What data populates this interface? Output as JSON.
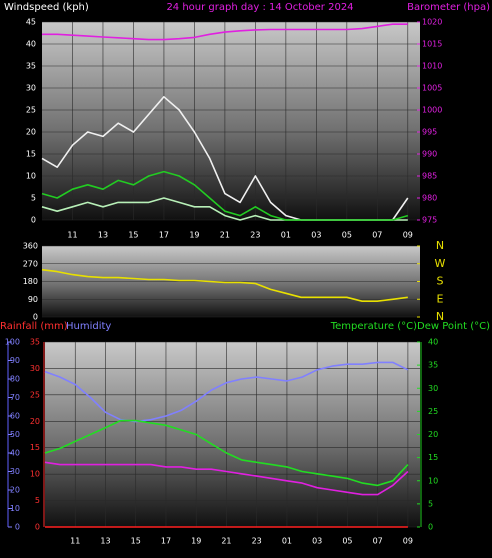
{
  "chart_data": [
    {
      "type": "line",
      "title": "24 hour graph day : 14 October 2024",
      "ylabel": "Windspeed (kph)",
      "y2label": "Barometer (hpa)",
      "x": [
        9,
        10,
        11,
        12,
        13,
        14,
        15,
        16,
        17,
        18,
        19,
        20,
        21,
        22,
        23,
        24,
        25,
        26,
        27,
        28,
        29,
        30,
        31,
        32,
        33
      ],
      "xlim": [
        9,
        33.8
      ],
      "xticks": [
        11,
        13,
        15,
        17,
        19,
        21,
        23,
        {
          "value": 25,
          "label": "01"
        },
        {
          "value": 27,
          "label": "03"
        },
        {
          "value": 29,
          "label": "05"
        },
        {
          "value": 31,
          "label": "07"
        },
        {
          "value": 33,
          "label": "09"
        }
      ],
      "ylim": [
        0,
        45
      ],
      "yticks": [
        0,
        5,
        10,
        15,
        20,
        25,
        30,
        35,
        40,
        45
      ],
      "y2lim": [
        975,
        1020
      ],
      "y2ticks": [
        975,
        980,
        985,
        990,
        995,
        1000,
        1005,
        1010,
        1015,
        1020
      ],
      "grid": true,
      "series": [
        {
          "color": "#f0f0f0",
          "values": [
            14,
            12,
            17,
            20,
            19,
            22,
            20,
            24,
            28,
            25,
            20,
            14,
            6,
            4,
            10,
            4,
            1,
            0,
            0,
            0,
            0,
            0,
            0,
            0,
            5
          ]
        },
        {
          "color": "#b8f0b8",
          "values": [
            3,
            2,
            3,
            4,
            3,
            4,
            4,
            4,
            5,
            4,
            3,
            3,
            1,
            0,
            1,
            0,
            0,
            0,
            0,
            0,
            0,
            0,
            0,
            0,
            0
          ]
        },
        {
          "color": "#22cc22",
          "values": [
            6,
            5,
            7,
            8,
            7,
            9,
            8,
            10,
            11,
            10,
            8,
            5,
            2,
            1,
            3,
            1,
            0,
            0,
            0,
            0,
            0,
            0,
            0,
            0,
            1
          ]
        },
        {
          "color": "#e020e0",
          "axis": "y2",
          "values": [
            1017.2,
            1017.2,
            1017,
            1016.8,
            1016.6,
            1016.4,
            1016.2,
            1016,
            1016,
            1016.2,
            1016.5,
            1017.2,
            1017.7,
            1018,
            1018.2,
            1018.3,
            1018.3,
            1018.3,
            1018.3,
            1018.3,
            1018.3,
            1018.5,
            1019,
            1019.5,
            1019.5
          ]
        }
      ]
    },
    {
      "type": "line",
      "x": [
        9,
        10,
        11,
        12,
        13,
        14,
        15,
        16,
        17,
        18,
        19,
        20,
        21,
        22,
        23,
        24,
        25,
        26,
        27,
        28,
        29,
        30,
        31,
        32,
        33
      ],
      "xlim": [
        9,
        33.8
      ],
      "ylim": [
        0,
        360
      ],
      "yticks": [
        0,
        90,
        180,
        270,
        360
      ],
      "y2lim": [
        0,
        360
      ],
      "y2ticks": [
        {
          "value": 360,
          "label": "N"
        },
        {
          "value": 270,
          "label": "W"
        },
        {
          "value": 180,
          "label": "S"
        },
        {
          "value": 90,
          "label": "E"
        },
        {
          "value": 0,
          "label": "N"
        }
      ],
      "grid": true,
      "series": [
        {
          "color": "#e8e000",
          "values": [
            240,
            230,
            215,
            205,
            200,
            200,
            195,
            190,
            190,
            185,
            185,
            180,
            175,
            175,
            170,
            140,
            120,
            100,
            100,
            100,
            100,
            80,
            80,
            90,
            100
          ]
        }
      ]
    },
    {
      "type": "line",
      "ylabel": "Rainfall (mm)",
      "y3label": "Humidity",
      "y2label": "Temperature (°C)Dew Point (°C)",
      "x": [
        9,
        10,
        11,
        12,
        13,
        14,
        15,
        16,
        17,
        18,
        19,
        20,
        21,
        22,
        23,
        24,
        25,
        26,
        27,
        28,
        29,
        30,
        31,
        32,
        33
      ],
      "xlim": [
        9,
        33.8
      ],
      "xticks": [
        11,
        13,
        15,
        17,
        19,
        21,
        23,
        {
          "value": 25,
          "label": "01"
        },
        {
          "value": 27,
          "label": "03"
        },
        {
          "value": 29,
          "label": "05"
        },
        {
          "value": 31,
          "label": "07"
        },
        {
          "value": 33,
          "label": "09"
        }
      ],
      "ylim": [
        0,
        35
      ],
      "yticks": [
        0,
        5,
        10,
        15,
        20,
        25,
        30,
        35
      ],
      "y3lim": [
        0,
        100
      ],
      "y3ticks": [
        0,
        10,
        20,
        30,
        40,
        50,
        60,
        70,
        80,
        90,
        100
      ],
      "y2lim": [
        0,
        40
      ],
      "y2ticks": [
        0,
        5,
        10,
        15,
        20,
        25,
        30,
        35,
        40
      ],
      "grid": true,
      "series": [
        {
          "color": "#8080ff",
          "axis": "y3",
          "values": [
            84,
            81,
            77,
            70,
            62,
            58,
            57,
            58,
            60,
            63,
            68,
            74,
            78,
            80,
            81,
            80,
            79,
            81,
            85,
            87,
            88,
            88,
            89,
            89,
            85
          ]
        },
        {
          "color": "#22dd22",
          "axis": "y2",
          "values": [
            16,
            17,
            18.5,
            20,
            21.5,
            23,
            23,
            22.5,
            22,
            21,
            20,
            18,
            16,
            14.5,
            14,
            13.5,
            13,
            12,
            11.5,
            11,
            10.5,
            9.5,
            9,
            10,
            13.5
          ]
        },
        {
          "color": "#e020e0",
          "axis": "y2",
          "values": [
            14,
            13.5,
            13.5,
            13.5,
            13.5,
            13.5,
            13.5,
            13.5,
            13,
            13,
            12.5,
            12.5,
            12,
            11.5,
            11,
            10.5,
            10,
            9.5,
            8.5,
            8,
            7.5,
            7,
            7,
            9,
            12
          ]
        },
        {
          "color": "#ff2020",
          "values": [
            0,
            0,
            0,
            0,
            0,
            0,
            0,
            0,
            0,
            0,
            0,
            0,
            0,
            0,
            0,
            0,
            0,
            0,
            0,
            0,
            0,
            0,
            0,
            0,
            0
          ]
        }
      ]
    }
  ]
}
